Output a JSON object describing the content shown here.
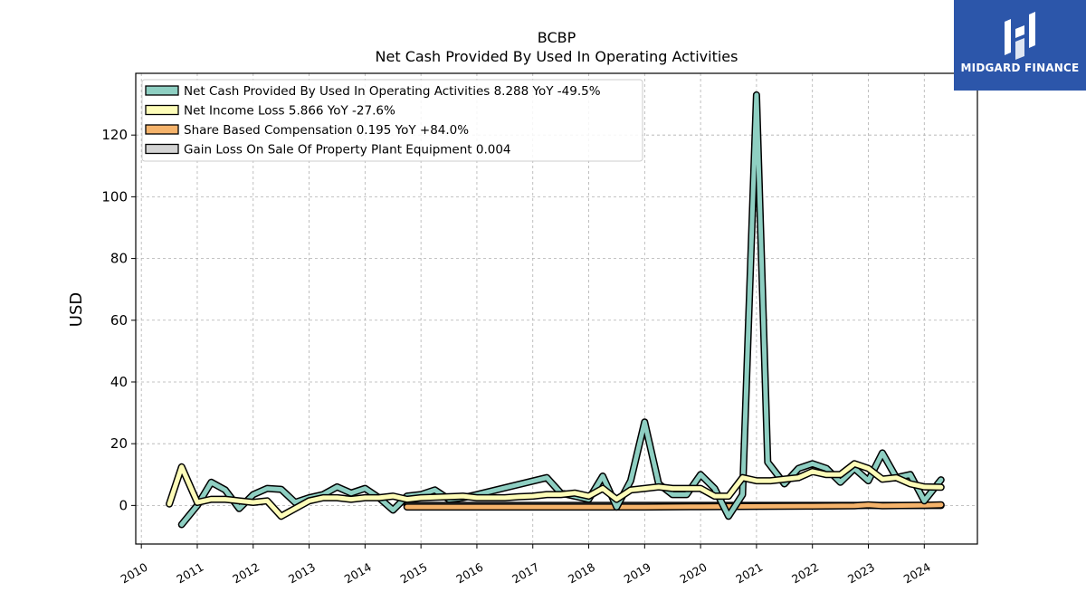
{
  "chart_data": {
    "type": "line",
    "title": "BCBP",
    "subtitle": "Net Cash Provided By Used In Operating Activities",
    "ylabel": "USD",
    "xlabel": "",
    "xlim": [
      2009.9,
      2024.95
    ],
    "ylim": [
      -12.5,
      140
    ],
    "grid": true,
    "legend_position": "top-left",
    "xticks": [
      2010,
      2011,
      2012,
      2013,
      2014,
      2015,
      2016,
      2017,
      2018,
      2019,
      2020,
      2021,
      2022,
      2023,
      2024
    ],
    "xtick_labels": [
      "2010",
      "2011",
      "2012",
      "2013",
      "2014",
      "2015",
      "2016",
      "2017",
      "2018",
      "2019",
      "2020",
      "2021",
      "2022",
      "2023",
      "2024"
    ],
    "yticks": [
      0,
      20,
      40,
      60,
      80,
      100,
      120
    ],
    "ytick_labels": [
      "0",
      "20",
      "40",
      "60",
      "80",
      "100",
      "120"
    ],
    "series": [
      {
        "name": "Net Cash Provided By Used In Operating Activities",
        "legend_label": "Net Cash Provided By Used In Operating Activities  8.288 YoY -49.5%",
        "color": "#8ecfc2",
        "points": [
          [
            2010.72,
            -6.2
          ],
          [
            2011.0,
            0
          ],
          [
            2011.25,
            7.5
          ],
          [
            2011.5,
            5
          ],
          [
            2011.75,
            -1
          ],
          [
            2012.0,
            3.5
          ],
          [
            2012.25,
            5.5
          ],
          [
            2012.5,
            5.2
          ],
          [
            2012.75,
            1
          ],
          [
            2013.0,
            2.5
          ],
          [
            2013.25,
            3.5
          ],
          [
            2013.5,
            6
          ],
          [
            2013.75,
            4
          ],
          [
            2014.0,
            5.5
          ],
          [
            2014.25,
            2.5
          ],
          [
            2014.5,
            -1.5
          ],
          [
            2014.75,
            3
          ],
          [
            2015.0,
            3.5
          ],
          [
            2015.25,
            5
          ],
          [
            2015.5,
            2
          ],
          [
            2015.75,
            2.5
          ],
          [
            2016.0,
            3.5
          ],
          [
            2017.25,
            9
          ],
          [
            2017.5,
            4
          ],
          [
            2017.75,
            3
          ],
          [
            2018.0,
            2
          ],
          [
            2018.25,
            9.5
          ],
          [
            2018.5,
            -0.5
          ],
          [
            2018.75,
            8
          ],
          [
            2019.0,
            27
          ],
          [
            2019.25,
            7
          ],
          [
            2019.5,
            3.5
          ],
          [
            2019.75,
            3.5
          ],
          [
            2020.0,
            10
          ],
          [
            2020.25,
            5.5
          ],
          [
            2020.5,
            -3.5
          ],
          [
            2020.75,
            3.5
          ],
          [
            2021.0,
            133
          ],
          [
            2021.2,
            14
          ],
          [
            2021.5,
            7
          ],
          [
            2021.75,
            12
          ],
          [
            2022.0,
            13.5
          ],
          [
            2022.25,
            12
          ],
          [
            2022.5,
            7.5
          ],
          [
            2022.75,
            12
          ],
          [
            2023.0,
            8
          ],
          [
            2023.25,
            17
          ],
          [
            2023.5,
            9
          ],
          [
            2023.75,
            10
          ],
          [
            2024.0,
            1.5
          ],
          [
            2024.3,
            8.3
          ]
        ]
      },
      {
        "name": "Net Income Loss",
        "legend_label": "Net Income Loss  5.866 YoY -27.6%",
        "color": "#fdfcb8",
        "points": [
          [
            2010.5,
            0.5
          ],
          [
            2010.72,
            12.5
          ],
          [
            2011.0,
            1
          ],
          [
            2011.25,
            2
          ],
          [
            2011.5,
            2
          ],
          [
            2011.75,
            1.5
          ],
          [
            2012.0,
            1
          ],
          [
            2012.25,
            1.5
          ],
          [
            2012.5,
            -3.5
          ],
          [
            2012.75,
            -1
          ],
          [
            2013.0,
            1.5
          ],
          [
            2013.25,
            2.5
          ],
          [
            2013.5,
            2.5
          ],
          [
            2013.75,
            2
          ],
          [
            2014.0,
            2.5
          ],
          [
            2014.25,
            2.5
          ],
          [
            2014.5,
            3
          ],
          [
            2014.75,
            2
          ],
          [
            2015.0,
            2.5
          ],
          [
            2015.5,
            2.8
          ],
          [
            2015.75,
            3
          ],
          [
            2016.0,
            2.5
          ],
          [
            2016.25,
            2.5
          ],
          [
            2016.5,
            2.5
          ],
          [
            2016.75,
            2.8
          ],
          [
            2017.0,
            3
          ],
          [
            2017.25,
            3.5
          ],
          [
            2017.5,
            3.5
          ],
          [
            2017.75,
            4
          ],
          [
            2018.0,
            3
          ],
          [
            2018.25,
            5.5
          ],
          [
            2018.5,
            2
          ],
          [
            2018.75,
            5
          ],
          [
            2019.0,
            5.5
          ],
          [
            2019.25,
            6
          ],
          [
            2019.5,
            5.5
          ],
          [
            2019.75,
            5.5
          ],
          [
            2020.0,
            5.5
          ],
          [
            2020.25,
            3
          ],
          [
            2020.5,
            3
          ],
          [
            2020.75,
            9
          ],
          [
            2021.0,
            8
          ],
          [
            2021.25,
            8
          ],
          [
            2021.5,
            8.5
          ],
          [
            2021.75,
            9
          ],
          [
            2022.0,
            11
          ],
          [
            2022.25,
            10
          ],
          [
            2022.5,
            10
          ],
          [
            2022.75,
            13.5
          ],
          [
            2023.0,
            12
          ],
          [
            2023.25,
            8.5
          ],
          [
            2023.5,
            9
          ],
          [
            2023.75,
            7
          ],
          [
            2024.0,
            6
          ],
          [
            2024.3,
            5.9
          ]
        ]
      },
      {
        "name": "Share Based Compensation",
        "legend_label": "Share Based Compensation  0.195 YoY +84.0%",
        "color": "#f5b36b",
        "points": [
          [
            2014.75,
            -0.5
          ],
          [
            2016.0,
            -0.5
          ],
          [
            2017.0,
            -0.5
          ],
          [
            2018.0,
            -0.5
          ],
          [
            2019.0,
            -0.5
          ],
          [
            2020.0,
            -0.4
          ],
          [
            2021.0,
            -0.3
          ],
          [
            2022.0,
            -0.2
          ],
          [
            2022.75,
            -0.1
          ],
          [
            2023.0,
            0.2
          ],
          [
            2023.25,
            -0.1
          ],
          [
            2024.0,
            0.05
          ],
          [
            2024.3,
            0.2
          ]
        ]
      },
      {
        "name": "Gain Loss On Sale Of Property Plant Equipment",
        "legend_label": "Gain Loss On Sale Of Property Plant Equipment  0.004",
        "color": "#d3d3d3",
        "points": [
          [
            2014.75,
            0
          ],
          [
            2024.3,
            0.004
          ]
        ]
      }
    ]
  },
  "logo": {
    "text": "MIDGARD FINANCE",
    "background": "#2c56aa"
  }
}
